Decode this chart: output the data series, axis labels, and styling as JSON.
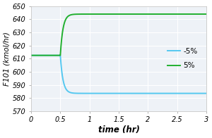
{
  "title": "",
  "xlabel": "time (hr)",
  "ylabel": "F101 (kmol/hr)",
  "xlim": [
    0,
    3
  ],
  "ylim": [
    570,
    650
  ],
  "yticks": [
    570,
    580,
    590,
    600,
    610,
    620,
    630,
    640,
    650
  ],
  "xticks": [
    0,
    0.5,
    1,
    1.5,
    2,
    2.5,
    3
  ],
  "xtick_labels": [
    "0",
    "0.5",
    "1",
    "1.5",
    "2",
    "2.5",
    "3"
  ],
  "step_time": 0.5,
  "plus5_initial": 612.5,
  "plus5_final": 644.0,
  "minus5_initial": 612.5,
  "minus5_final": 583.5,
  "line_color_minus": "#55c8f0",
  "line_color_plus": "#22b030",
  "background_color": "#eef2f7",
  "legend_minus": "-5%",
  "legend_plus": "5%",
  "legend_fontsize": 7.5,
  "tick_fontsize": 7,
  "xlabel_fontsize": 8.5,
  "ylabel_fontsize": 7.5,
  "time_constant": 0.045,
  "linewidth": 1.4
}
